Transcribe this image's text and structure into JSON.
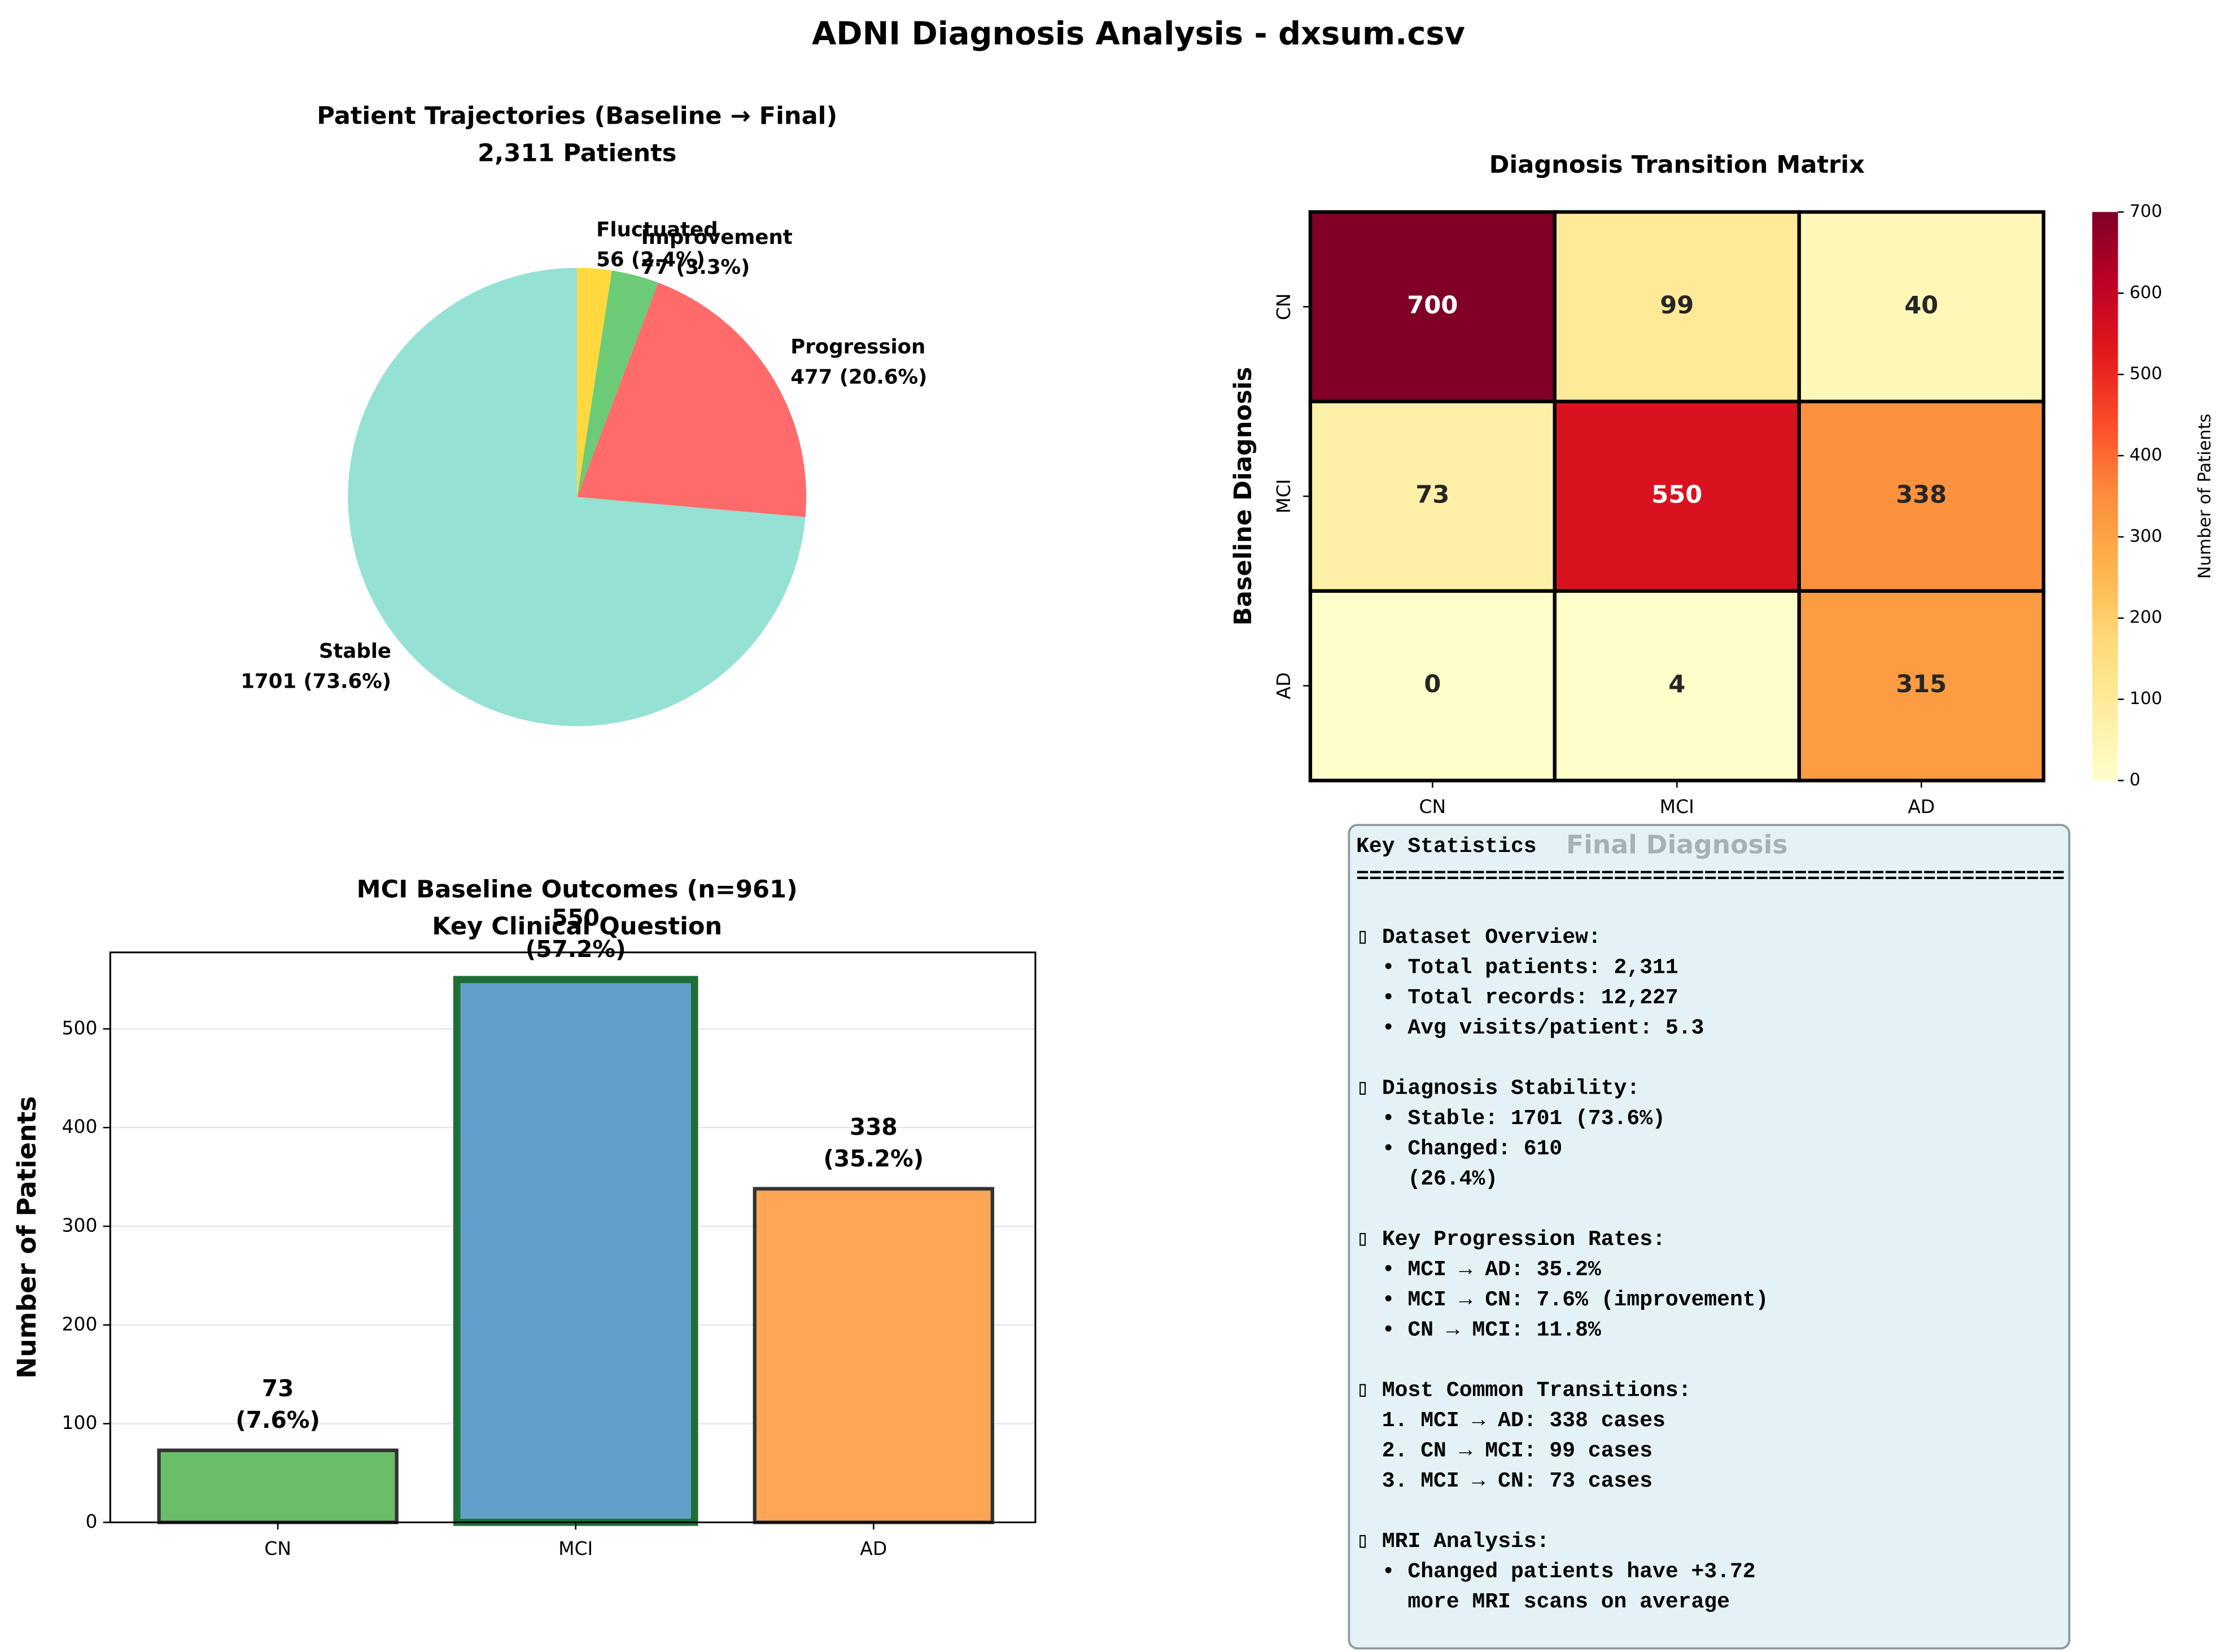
{
  "title": "ADNI Diagnosis Analysis - dxsum.csv",
  "chart_data": [
    {
      "type": "pie",
      "title": "Patient Trajectories (Baseline → Final)",
      "subtitle": "2,311 Patients",
      "categories": [
        "Stable",
        "Progression",
        "Improvement",
        "Fluctuated"
      ],
      "values": [
        1701,
        477,
        77,
        56
      ],
      "value_labels": [
        "1701 (73.6%)",
        "477 (20.6%)",
        "77 (3.3%)",
        "56 (2.4%)"
      ],
      "colors": [
        "#95e1d3",
        "#ff6b6b",
        "#6bcb77",
        "#ffd93d"
      ]
    },
    {
      "type": "heatmap",
      "title": "Diagnosis Transition Matrix",
      "xlabel": "Final Diagnosis",
      "ylabel": "Baseline Diagnosis",
      "x_categories": [
        "CN",
        "MCI",
        "AD"
      ],
      "y_categories": [
        "CN",
        "MCI",
        "AD"
      ],
      "values": [
        [
          700,
          99,
          40
        ],
        [
          73,
          550,
          338
        ],
        [
          0,
          4,
          315
        ]
      ],
      "colormap": "YlOrRd",
      "clim": [
        0,
        700
      ],
      "cticks": [
        0,
        100,
        200,
        300,
        400,
        500,
        600,
        700
      ],
      "colorbar_label": "Number of Patients"
    },
    {
      "type": "bar",
      "title": "MCI Baseline Outcomes (n=961)",
      "subtitle": "Key Clinical Question",
      "ylabel": "Number of Patients",
      "categories": [
        "CN",
        "MCI",
        "AD"
      ],
      "values": [
        73,
        550,
        338
      ],
      "value_labels": [
        "73\n(7.6%)",
        "550\n(57.2%)",
        "338\n(35.2%)"
      ],
      "colors": [
        "#6abd69",
        "#62a0ca",
        "#ffa556"
      ],
      "edge_colors": [
        "#333333",
        "#1f6e35",
        "#333333"
      ],
      "ylim": [
        0,
        577.5
      ],
      "yticks": [
        0,
        100,
        200,
        300,
        400,
        500
      ],
      "grid": true
    }
  ],
  "stats_panel": {
    "heading": "Key Statistics",
    "rule": "=======================================================",
    "sections": [
      {
        "title": "▯ Dataset Overview:",
        "lines": [
          "  • Total patients: 2,311",
          "  • Total records: 12,227",
          "  • Avg visits/patient: 5.3"
        ]
      },
      {
        "title": "▯ Diagnosis Stability:",
        "lines": [
          "  • Stable: 1701 (73.6%)",
          "  • Changed: 610",
          "    (26.4%)"
        ]
      },
      {
        "title": "▯ Key Progression Rates:",
        "lines": [
          "  • MCI → AD: 35.2%",
          "  • MCI → CN: 7.6% (improvement)",
          "  • CN → MCI: 11.8%"
        ]
      },
      {
        "title": "▯ Most Common Transitions:",
        "lines": [
          "  1. MCI → AD: 338 cases",
          "  2. CN → MCI: 99 cases",
          "  3. MCI → CN: 73 cases"
        ]
      },
      {
        "title": "▯ MRI Analysis:",
        "lines": [
          "  • Changed patients have +3.72",
          "    more MRI scans on average"
        ]
      }
    ]
  }
}
